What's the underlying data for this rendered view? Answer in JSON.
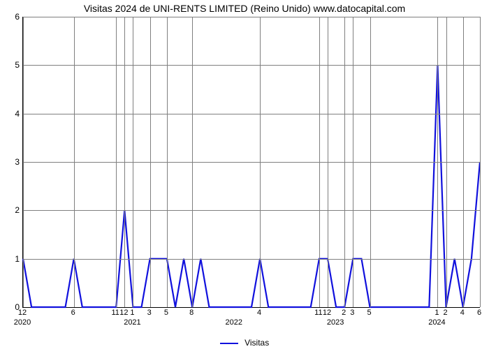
{
  "chart": {
    "type": "line",
    "title": "Visitas 2024 de UNI-RENTS LIMITED (Reino Unido) www.datocapital.com",
    "title_fontsize": 14,
    "background_color": "#ffffff",
    "grid_color": "#7f7f7f",
    "axis_color": "#000000",
    "line_color": "#1111dd",
    "line_width": 2.2,
    "ylabel_fontsize": 12,
    "xlabel_fontsize": 11,
    "ylim": [
      0,
      6
    ],
    "yticks": [
      0,
      1,
      2,
      3,
      4,
      5,
      6
    ],
    "x_count": 55,
    "x_month_labels": [
      {
        "i": 0,
        "t": "12"
      },
      {
        "i": 6,
        "t": "6"
      },
      {
        "i": 11,
        "t": "11"
      },
      {
        "i": 12,
        "t": "12"
      },
      {
        "i": 13,
        "t": "1"
      },
      {
        "i": 15,
        "t": "3"
      },
      {
        "i": 17,
        "t": "5"
      },
      {
        "i": 20,
        "t": "8"
      },
      {
        "i": 28,
        "t": "4"
      },
      {
        "i": 35,
        "t": "11"
      },
      {
        "i": 36,
        "t": "12"
      },
      {
        "i": 38,
        "t": "2"
      },
      {
        "i": 39,
        "t": "3"
      },
      {
        "i": 41,
        "t": "5"
      },
      {
        "i": 49,
        "t": "1"
      },
      {
        "i": 50,
        "t": "2"
      },
      {
        "i": 52,
        "t": "4"
      },
      {
        "i": 54,
        "t": "6"
      }
    ],
    "x_year_labels": [
      {
        "i": 0,
        "t": "2020"
      },
      {
        "i": 13,
        "t": "2021"
      },
      {
        "i": 25,
        "t": "2022"
      },
      {
        "i": 37,
        "t": "2023"
      },
      {
        "i": 49,
        "t": "2024"
      }
    ],
    "values": [
      1,
      0,
      0,
      0,
      0,
      0,
      1,
      0,
      0,
      0,
      0,
      0,
      2,
      0,
      0,
      1,
      1,
      1,
      0,
      1,
      0,
      1,
      0,
      0,
      0,
      0,
      0,
      0,
      1,
      0,
      0,
      0,
      0,
      0,
      0,
      1,
      1,
      0,
      0,
      1,
      1,
      0,
      0,
      0,
      0,
      0,
      0,
      0,
      0,
      5,
      0,
      1,
      0,
      1,
      3
    ],
    "legend_label": "Visitas"
  }
}
